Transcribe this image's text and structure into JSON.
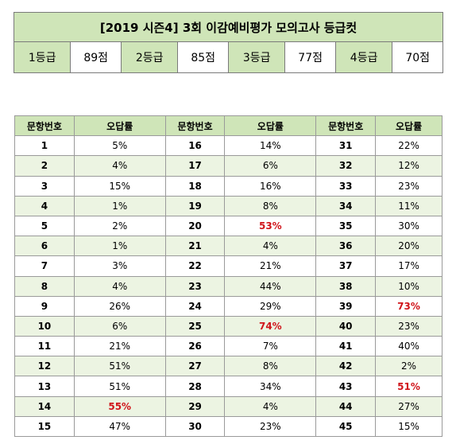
{
  "title": "[2019 시즌4] 3회 이감예비평가 모의고사 등급컷",
  "grades": [
    {
      "label": "1등급",
      "score": "89점"
    },
    {
      "label": "2등급",
      "score": "85점"
    },
    {
      "label": "3등급",
      "score": "77점"
    },
    {
      "label": "4등급",
      "score": "70점"
    }
  ],
  "headers": {
    "question": "문항번호",
    "rate": "오답률"
  },
  "rows": [
    [
      {
        "q": "1",
        "r": "5%"
      },
      {
        "q": "16",
        "r": "14%"
      },
      {
        "q": "31",
        "r": "22%"
      }
    ],
    [
      {
        "q": "2",
        "r": "4%"
      },
      {
        "q": "17",
        "r": "6%"
      },
      {
        "q": "32",
        "r": "12%"
      }
    ],
    [
      {
        "q": "3",
        "r": "15%"
      },
      {
        "q": "18",
        "r": "16%"
      },
      {
        "q": "33",
        "r": "23%"
      }
    ],
    [
      {
        "q": "4",
        "r": "1%"
      },
      {
        "q": "19",
        "r": "8%"
      },
      {
        "q": "34",
        "r": "11%"
      }
    ],
    [
      {
        "q": "5",
        "r": "2%"
      },
      {
        "q": "20",
        "r": "53%",
        "highlight": true
      },
      {
        "q": "35",
        "r": "30%"
      }
    ],
    [
      {
        "q": "6",
        "r": "1%"
      },
      {
        "q": "21",
        "r": "4%"
      },
      {
        "q": "36",
        "r": "20%"
      }
    ],
    [
      {
        "q": "7",
        "r": "3%"
      },
      {
        "q": "22",
        "r": "21%"
      },
      {
        "q": "37",
        "r": "17%"
      }
    ],
    [
      {
        "q": "8",
        "r": "4%"
      },
      {
        "q": "23",
        "r": "44%"
      },
      {
        "q": "38",
        "r": "10%"
      }
    ],
    [
      {
        "q": "9",
        "r": "26%"
      },
      {
        "q": "24",
        "r": "29%"
      },
      {
        "q": "39",
        "r": "73%",
        "highlight": true
      }
    ],
    [
      {
        "q": "10",
        "r": "6%"
      },
      {
        "q": "25",
        "r": "74%",
        "highlight": true
      },
      {
        "q": "40",
        "r": "23%"
      }
    ],
    [
      {
        "q": "11",
        "r": "21%"
      },
      {
        "q": "26",
        "r": "7%"
      },
      {
        "q": "41",
        "r": "40%"
      }
    ],
    [
      {
        "q": "12",
        "r": "51%"
      },
      {
        "q": "27",
        "r": "8%"
      },
      {
        "q": "42",
        "r": "2%"
      }
    ],
    [
      {
        "q": "13",
        "r": "51%"
      },
      {
        "q": "28",
        "r": "34%"
      },
      {
        "q": "43",
        "r": "51%",
        "highlight": true
      }
    ],
    [
      {
        "q": "14",
        "r": "55%",
        "highlight": true
      },
      {
        "q": "29",
        "r": "4%"
      },
      {
        "q": "44",
        "r": "27%"
      }
    ],
    [
      {
        "q": "15",
        "r": "47%"
      },
      {
        "q": "30",
        "r": "23%"
      },
      {
        "q": "45",
        "r": "15%"
      }
    ]
  ]
}
